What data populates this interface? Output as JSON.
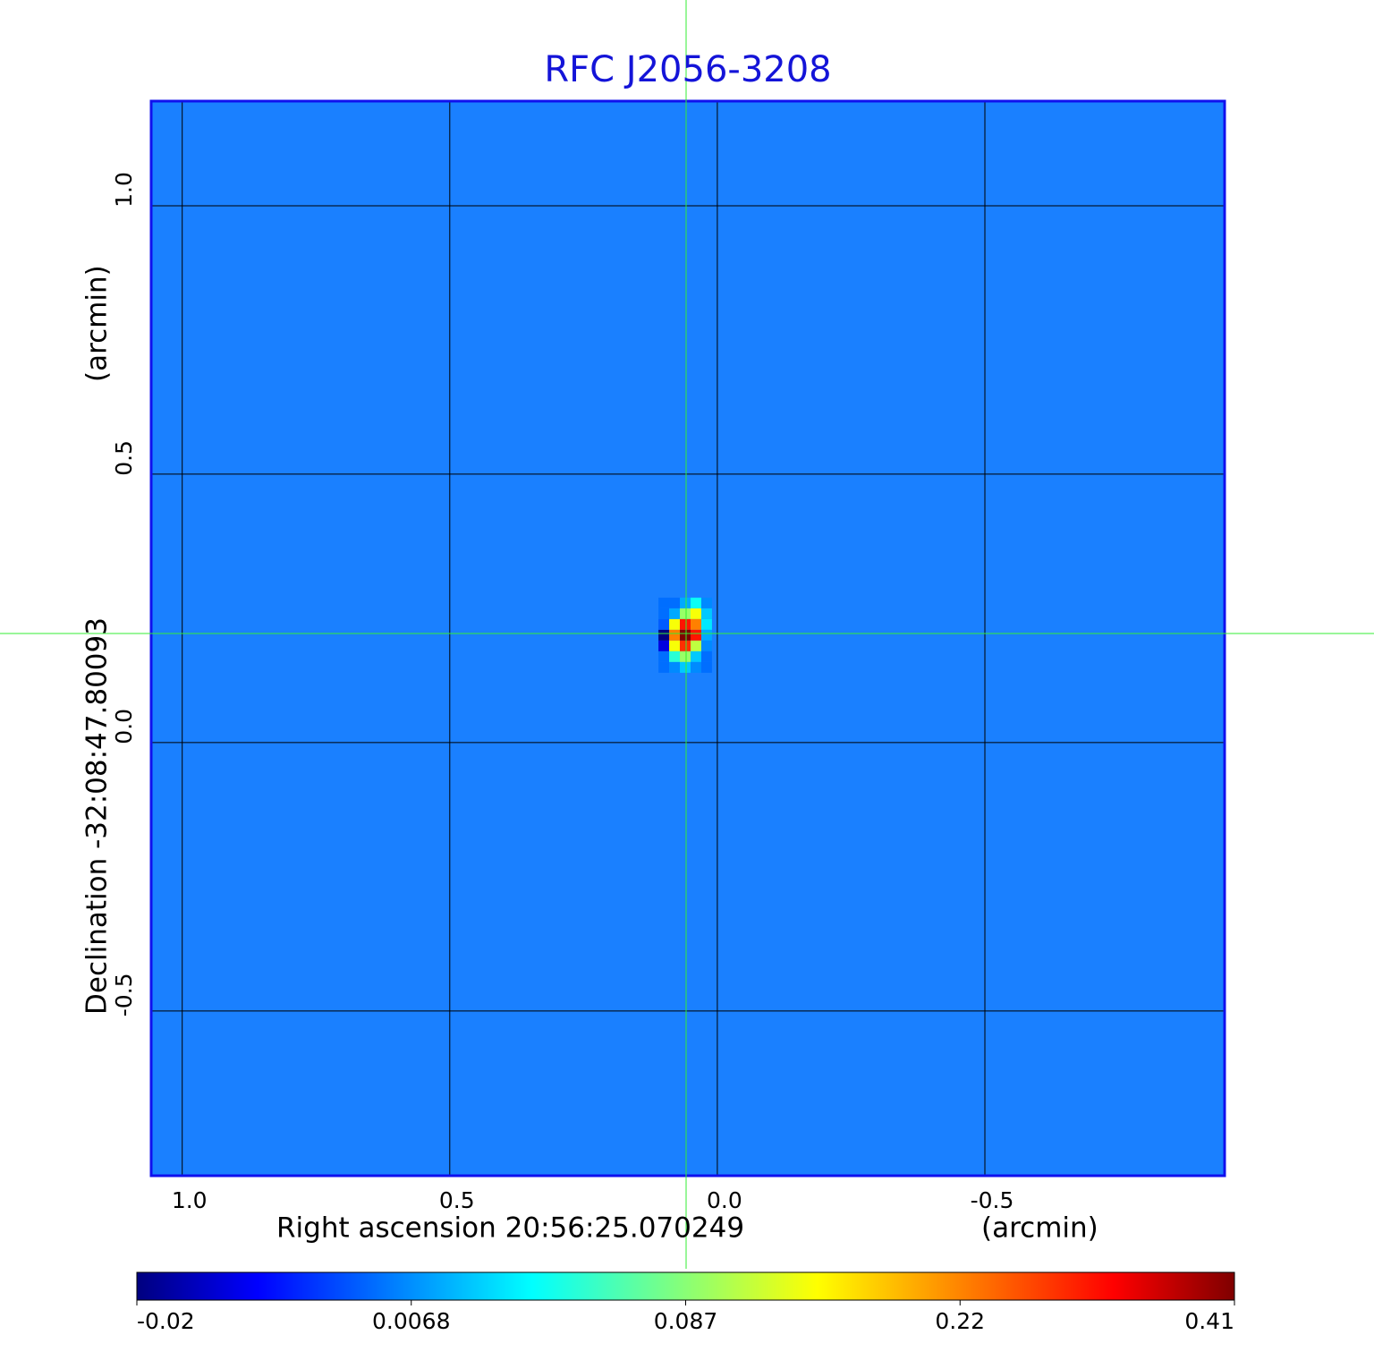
{
  "chart_data": {
    "type": "heatmap",
    "title": "RFC J2056-3208",
    "xlabel": "Right ascension  20:56:25.070249",
    "xunit": "(arcmin)",
    "ylabel": "Declination  -32:08:47.80093",
    "yunit": "(arcmin)",
    "xlim": [
      1.058,
      -0.948
    ],
    "ylim": [
      -0.807,
      1.195
    ],
    "xticks": [
      {
        "value": 1,
        "label": "1.0"
      },
      0.5,
      {
        "value": 0,
        "label": "0.0"
      },
      -0.5
    ],
    "yticks": [
      -0.5,
      {
        "value": 0,
        "label": "0.0"
      },
      0.5,
      {
        "value": 1,
        "label": "1.0"
      }
    ],
    "grid": true,
    "x": [
      0.1,
      0.08,
      0.06,
      0.04,
      0.02
    ],
    "y": [
      0.26,
      0.24,
      0.22,
      0.2,
      0.18,
      0.16,
      0.14
    ],
    "z": [
      [
        0.005,
        0.005,
        0.02,
        0.05,
        0.01
      ],
      [
        0.005,
        0.02,
        0.1,
        0.15,
        0.03
      ],
      [
        0.003,
        0.15,
        0.3,
        0.22,
        0.04
      ],
      [
        -0.02,
        0.22,
        0.41,
        0.3,
        0.02
      ],
      [
        -0.01,
        0.15,
        0.28,
        0.12,
        0.01
      ],
      [
        0.005,
        0.06,
        0.1,
        0.03,
        0.005
      ],
      [
        0.005,
        0.01,
        0.03,
        0.01,
        0.005
      ]
    ],
    "colorbar_ticks": [
      -0.02,
      0.0068,
      0.087,
      0.22,
      0.41
    ],
    "colormap": "jet"
  }
}
